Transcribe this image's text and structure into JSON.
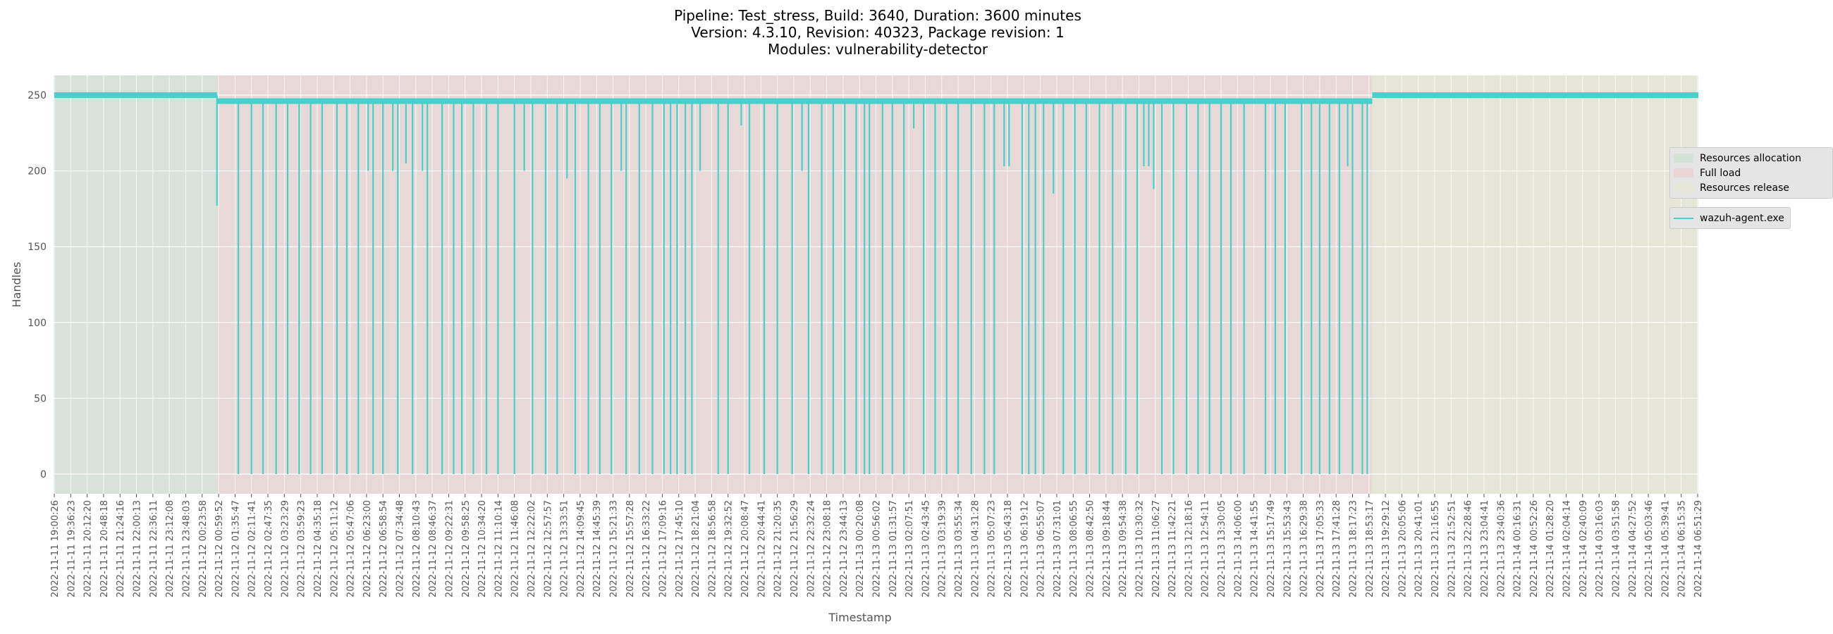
{
  "chart_data": {
    "type": "line",
    "title_lines": [
      "Pipeline: Test_stress, Build: 3640, Duration: 3600 minutes",
      "Version: 4.3.10, Revision: 40323, Package revision: 1",
      "Modules: vulnerability-detector"
    ],
    "xlabel": "Timestamp",
    "ylabel": "Handles",
    "ylim": [
      -13,
      263
    ],
    "yticks": [
      0,
      50,
      100,
      150,
      200,
      250
    ],
    "grid": true,
    "legend_placement": "outside right",
    "x_tick_labels": [
      "2022-11-11 19:00:26",
      "2022-11-11 19:36:23",
      "2022-11-11 20:12:20",
      "2022-11-11 20:48:18",
      "2022-11-11 21:24:16",
      "2022-11-11 22:00:13",
      "2022-11-11 22:36:11",
      "2022-11-11 23:12:08",
      "2022-11-11 23:48:03",
      "2022-11-12 00:23:58",
      "2022-11-12 00:59:52",
      "2022-11-12 01:35:47",
      "2022-11-12 02:11:41",
      "2022-11-12 02:47:35",
      "2022-11-12 03:23:29",
      "2022-11-12 03:59:23",
      "2022-11-12 04:35:18",
      "2022-11-12 05:11:12",
      "2022-11-12 05:47:06",
      "2022-11-12 06:23:00",
      "2022-11-12 06:58:54",
      "2022-11-12 07:34:48",
      "2022-11-12 08:10:43",
      "2022-11-12 08:46:37",
      "2022-11-12 09:22:31",
      "2022-11-12 09:58:25",
      "2022-11-12 10:34:20",
      "2022-11-12 11:10:14",
      "2022-11-12 11:46:08",
      "2022-11-12 12:22:02",
      "2022-11-12 12:57:57",
      "2022-11-12 13:33:51",
      "2022-11-12 14:09:45",
      "2022-11-12 14:45:39",
      "2022-11-12 15:21:33",
      "2022-11-12 15:57:28",
      "2022-11-12 16:33:22",
      "2022-11-12 17:09:16",
      "2022-11-12 17:45:10",
      "2022-11-12 18:21:04",
      "2022-11-12 18:56:58",
      "2022-11-12 19:32:52",
      "2022-11-12 20:08:47",
      "2022-11-12 20:44:41",
      "2022-11-12 21:20:35",
      "2022-11-12 21:56:29",
      "2022-11-12 22:32:24",
      "2022-11-12 23:08:18",
      "2022-11-12 23:44:13",
      "2022-11-13 00:20:08",
      "2022-11-13 00:56:02",
      "2022-11-13 01:31:57",
      "2022-11-13 02:07:51",
      "2022-11-13 02:43:45",
      "2022-11-13 03:19:39",
      "2022-11-13 03:55:34",
      "2022-11-13 04:31:28",
      "2022-11-13 05:07:23",
      "2022-11-13 05:43:18",
      "2022-11-13 06:19:12",
      "2022-11-13 06:55:07",
      "2022-11-13 07:31:01",
      "2022-11-13 08:06:55",
      "2022-11-13 08:42:50",
      "2022-11-13 09:18:44",
      "2022-11-13 09:54:38",
      "2022-11-13 10:30:32",
      "2022-11-13 11:06:27",
      "2022-11-13 11:42:21",
      "2022-11-13 12:18:16",
      "2022-11-13 12:54:11",
      "2022-11-13 13:30:05",
      "2022-11-13 14:06:00",
      "2022-11-13 14:41:55",
      "2022-11-13 15:17:49",
      "2022-11-13 15:53:43",
      "2022-11-13 16:29:38",
      "2022-11-13 17:05:33",
      "2022-11-13 17:41:28",
      "2022-11-13 18:17:23",
      "2022-11-13 18:53:17",
      "2022-11-13 19:29:12",
      "2022-11-13 20:05:06",
      "2022-11-13 20:41:01",
      "2022-11-13 21:16:55",
      "2022-11-13 21:52:51",
      "2022-11-13 22:28:46",
      "2022-11-13 23:04:41",
      "2022-11-13 23:40:36",
      "2022-11-14 00:16:31",
      "2022-11-14 00:52:26",
      "2022-11-14 01:28:20",
      "2022-11-14 02:04:14",
      "2022-11-14 02:40:09",
      "2022-11-14 03:16:03",
      "2022-11-14 03:51:58",
      "2022-11-14 04:27:52",
      "2022-11-14 05:03:46",
      "2022-11-14 05:39:41",
      "2022-11-14 06:15:35",
      "2022-11-14 06:51:29"
    ],
    "phases": [
      {
        "name": "Resources allocation",
        "start_tick": 0,
        "end_tick": 9.9,
        "color": "#d5e2d8"
      },
      {
        "name": "Full load",
        "start_tick": 9.9,
        "end_tick": 80.2,
        "color": "#e8d6d6"
      },
      {
        "name": "Resources release",
        "start_tick": 80.2,
        "end_tick": 101.1,
        "color": "#e5e6d6"
      }
    ],
    "series": [
      {
        "name": "wazuh-agent.exe",
        "color": "#48d1cc",
        "baseline_segments": [
          {
            "start_tick": 0,
            "end_tick": 9.9,
            "value": 250
          },
          {
            "start_tick": 9.9,
            "end_tick": 80.2,
            "value": 246
          },
          {
            "start_tick": 80.2,
            "end_tick": 101.1,
            "value": 250
          }
        ],
        "drops": [
          {
            "tick": 9.9,
            "value": 177
          },
          {
            "tick": 11.2,
            "value": 0
          },
          {
            "tick": 12.0,
            "value": 0
          },
          {
            "tick": 12.7,
            "value": 0
          },
          {
            "tick": 13.5,
            "value": 0
          },
          {
            "tick": 14.2,
            "value": 0
          },
          {
            "tick": 14.9,
            "value": 0
          },
          {
            "tick": 15.6,
            "value": 0
          },
          {
            "tick": 16.3,
            "value": 0
          },
          {
            "tick": 17.2,
            "value": 0
          },
          {
            "tick": 17.8,
            "value": 0
          },
          {
            "tick": 18.5,
            "value": 0
          },
          {
            "tick": 19.1,
            "value": 200
          },
          {
            "tick": 19.4,
            "value": 0
          },
          {
            "tick": 20.0,
            "value": 0
          },
          {
            "tick": 20.6,
            "value": 200
          },
          {
            "tick": 20.9,
            "value": 0
          },
          {
            "tick": 21.4,
            "value": 205
          },
          {
            "tick": 21.8,
            "value": 0
          },
          {
            "tick": 22.4,
            "value": 200
          },
          {
            "tick": 22.7,
            "value": 0
          },
          {
            "tick": 23.6,
            "value": 0
          },
          {
            "tick": 24.3,
            "value": 0
          },
          {
            "tick": 24.8,
            "value": 0
          },
          {
            "tick": 25.5,
            "value": 0
          },
          {
            "tick": 26.3,
            "value": 0
          },
          {
            "tick": 27.0,
            "value": 0
          },
          {
            "tick": 28.0,
            "value": 0
          },
          {
            "tick": 28.6,
            "value": 200
          },
          {
            "tick": 29.1,
            "value": 0
          },
          {
            "tick": 29.9,
            "value": 0
          },
          {
            "tick": 30.6,
            "value": 0
          },
          {
            "tick": 31.2,
            "value": 195
          },
          {
            "tick": 31.7,
            "value": 0
          },
          {
            "tick": 32.5,
            "value": 0
          },
          {
            "tick": 33.2,
            "value": 0
          },
          {
            "tick": 33.9,
            "value": 0
          },
          {
            "tick": 34.5,
            "value": 200
          },
          {
            "tick": 34.8,
            "value": 0
          },
          {
            "tick": 35.6,
            "value": 0
          },
          {
            "tick": 36.4,
            "value": 0
          },
          {
            "tick": 37.1,
            "value": 0
          },
          {
            "tick": 37.5,
            "value": 0
          },
          {
            "tick": 37.9,
            "value": 0
          },
          {
            "tick": 38.4,
            "value": 0
          },
          {
            "tick": 38.8,
            "value": 0
          },
          {
            "tick": 39.3,
            "value": 200
          },
          {
            "tick": 40.4,
            "value": 0
          },
          {
            "tick": 41.0,
            "value": 0
          },
          {
            "tick": 41.8,
            "value": 230
          },
          {
            "tick": 42.3,
            "value": 0
          },
          {
            "tick": 43.2,
            "value": 0
          },
          {
            "tick": 44.0,
            "value": 0
          },
          {
            "tick": 44.9,
            "value": 0
          },
          {
            "tick": 45.5,
            "value": 200
          },
          {
            "tick": 45.9,
            "value": 0
          },
          {
            "tick": 46.7,
            "value": 0
          },
          {
            "tick": 47.4,
            "value": 0
          },
          {
            "tick": 48.1,
            "value": 0
          },
          {
            "tick": 48.8,
            "value": 0
          },
          {
            "tick": 49.3,
            "value": 0
          },
          {
            "tick": 49.6,
            "value": 0
          },
          {
            "tick": 50.4,
            "value": 0
          },
          {
            "tick": 51.0,
            "value": 0
          },
          {
            "tick": 51.7,
            "value": 0
          },
          {
            "tick": 52.3,
            "value": 228
          },
          {
            "tick": 52.9,
            "value": 0
          },
          {
            "tick": 53.6,
            "value": 0
          },
          {
            "tick": 54.3,
            "value": 0
          },
          {
            "tick": 55.0,
            "value": 0
          },
          {
            "tick": 55.8,
            "value": 0
          },
          {
            "tick": 56.6,
            "value": 0
          },
          {
            "tick": 57.2,
            "value": 0
          },
          {
            "tick": 57.8,
            "value": 203
          },
          {
            "tick": 58.1,
            "value": 203
          },
          {
            "tick": 58.9,
            "value": 0
          },
          {
            "tick": 59.3,
            "value": 0
          },
          {
            "tick": 59.7,
            "value": 0
          },
          {
            "tick": 60.2,
            "value": 0
          },
          {
            "tick": 60.8,
            "value": 185
          },
          {
            "tick": 61.4,
            "value": 0
          },
          {
            "tick": 62.1,
            "value": 0
          },
          {
            "tick": 62.8,
            "value": 0
          },
          {
            "tick": 63.6,
            "value": 0
          },
          {
            "tick": 64.4,
            "value": 0
          },
          {
            "tick": 65.2,
            "value": 0
          },
          {
            "tick": 65.9,
            "value": 0
          },
          {
            "tick": 66.3,
            "value": 203
          },
          {
            "tick": 66.6,
            "value": 203
          },
          {
            "tick": 66.9,
            "value": 188
          },
          {
            "tick": 67.4,
            "value": 0
          },
          {
            "tick": 68.1,
            "value": 0
          },
          {
            "tick": 68.9,
            "value": 0
          },
          {
            "tick": 69.6,
            "value": 0
          },
          {
            "tick": 70.3,
            "value": 0
          },
          {
            "tick": 71.0,
            "value": 0
          },
          {
            "tick": 71.6,
            "value": 0
          },
          {
            "tick": 72.4,
            "value": 0
          },
          {
            "tick": 73.7,
            "value": 0
          },
          {
            "tick": 74.3,
            "value": 0
          },
          {
            "tick": 74.9,
            "value": 0
          },
          {
            "tick": 75.9,
            "value": 0
          },
          {
            "tick": 76.5,
            "value": 0
          },
          {
            "tick": 77.0,
            "value": 0
          },
          {
            "tick": 77.6,
            "value": 0
          },
          {
            "tick": 78.2,
            "value": 0
          },
          {
            "tick": 78.7,
            "value": 203
          },
          {
            "tick": 79.0,
            "value": 0
          },
          {
            "tick": 79.6,
            "value": 0
          },
          {
            "tick": 79.9,
            "value": 0
          }
        ]
      }
    ]
  }
}
